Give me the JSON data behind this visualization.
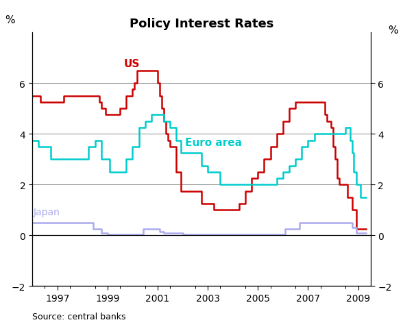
{
  "title": "Policy Interest Rates",
  "ylabel_left": "%",
  "ylabel_right": "%",
  "source": "Source: central banks",
  "ylim": [
    -2,
    8
  ],
  "yticks": [
    -2,
    0,
    2,
    4,
    6
  ],
  "xlim": [
    1996.0,
    2009.5
  ],
  "xticks_major": [
    1997,
    1999,
    2001,
    2003,
    2005,
    2007,
    2009
  ],
  "background_color": "#ffffff",
  "us_color": "#cc0000",
  "euro_color": "#00cccc",
  "japan_color": "#aaaaee",
  "us_label": "US",
  "euro_label": "Euro area",
  "japan_label": "Japan",
  "us_data": [
    [
      1996.0,
      5.5
    ],
    [
      1996.17,
      5.5
    ],
    [
      1996.33,
      5.25
    ],
    [
      1996.5,
      5.25
    ],
    [
      1996.75,
      5.25
    ],
    [
      1997.0,
      5.25
    ],
    [
      1997.25,
      5.5
    ],
    [
      1997.5,
      5.5
    ],
    [
      1997.75,
      5.5
    ],
    [
      1998.0,
      5.5
    ],
    [
      1998.25,
      5.5
    ],
    [
      1998.5,
      5.5
    ],
    [
      1998.67,
      5.25
    ],
    [
      1998.75,
      5.0
    ],
    [
      1998.92,
      4.75
    ],
    [
      1999.0,
      4.75
    ],
    [
      1999.25,
      4.75
    ],
    [
      1999.5,
      5.0
    ],
    [
      1999.75,
      5.5
    ],
    [
      2000.0,
      5.75
    ],
    [
      2000.08,
      6.0
    ],
    [
      2000.17,
      6.5
    ],
    [
      2000.5,
      6.5
    ],
    [
      2000.75,
      6.5
    ],
    [
      2001.0,
      6.0
    ],
    [
      2001.08,
      5.5
    ],
    [
      2001.17,
      5.0
    ],
    [
      2001.25,
      4.5
    ],
    [
      2001.33,
      4.0
    ],
    [
      2001.42,
      3.75
    ],
    [
      2001.5,
      3.5
    ],
    [
      2001.75,
      2.5
    ],
    [
      2001.92,
      1.75
    ],
    [
      2002.0,
      1.75
    ],
    [
      2002.25,
      1.75
    ],
    [
      2002.5,
      1.75
    ],
    [
      2002.75,
      1.25
    ],
    [
      2003.0,
      1.25
    ],
    [
      2003.25,
      1.0
    ],
    [
      2003.5,
      1.0
    ],
    [
      2003.75,
      1.0
    ],
    [
      2004.0,
      1.0
    ],
    [
      2004.25,
      1.25
    ],
    [
      2004.5,
      1.75
    ],
    [
      2004.75,
      2.25
    ],
    [
      2005.0,
      2.5
    ],
    [
      2005.25,
      3.0
    ],
    [
      2005.5,
      3.5
    ],
    [
      2005.75,
      4.0
    ],
    [
      2006.0,
      4.5
    ],
    [
      2006.25,
      5.0
    ],
    [
      2006.5,
      5.25
    ],
    [
      2006.75,
      5.25
    ],
    [
      2007.0,
      5.25
    ],
    [
      2007.25,
      5.25
    ],
    [
      2007.5,
      5.25
    ],
    [
      2007.67,
      4.75
    ],
    [
      2007.75,
      4.5
    ],
    [
      2007.92,
      4.25
    ],
    [
      2008.0,
      3.5
    ],
    [
      2008.08,
      3.0
    ],
    [
      2008.17,
      2.25
    ],
    [
      2008.25,
      2.0
    ],
    [
      2008.5,
      2.0
    ],
    [
      2008.58,
      1.5
    ],
    [
      2008.75,
      1.0
    ],
    [
      2008.92,
      0.25
    ],
    [
      2009.0,
      0.25
    ],
    [
      2009.3,
      0.25
    ]
  ],
  "euro_data": [
    [
      1996.0,
      3.75
    ],
    [
      1996.25,
      3.5
    ],
    [
      1996.5,
      3.5
    ],
    [
      1996.75,
      3.0
    ],
    [
      1997.0,
      3.0
    ],
    [
      1997.25,
      3.0
    ],
    [
      1997.5,
      3.0
    ],
    [
      1997.75,
      3.0
    ],
    [
      1998.0,
      3.0
    ],
    [
      1998.25,
      3.5
    ],
    [
      1998.5,
      3.75
    ],
    [
      1998.75,
      3.0
    ],
    [
      1999.0,
      3.0
    ],
    [
      1999.08,
      2.5
    ],
    [
      1999.25,
      2.5
    ],
    [
      1999.5,
      2.5
    ],
    [
      1999.75,
      3.0
    ],
    [
      2000.0,
      3.5
    ],
    [
      2000.25,
      4.25
    ],
    [
      2000.5,
      4.5
    ],
    [
      2000.75,
      4.75
    ],
    [
      2001.0,
      4.75
    ],
    [
      2001.25,
      4.5
    ],
    [
      2001.5,
      4.25
    ],
    [
      2001.75,
      3.75
    ],
    [
      2001.92,
      3.25
    ],
    [
      2002.0,
      3.25
    ],
    [
      2002.25,
      3.25
    ],
    [
      2002.5,
      3.25
    ],
    [
      2002.75,
      2.75
    ],
    [
      2003.0,
      2.5
    ],
    [
      2003.25,
      2.5
    ],
    [
      2003.5,
      2.0
    ],
    [
      2003.75,
      2.0
    ],
    [
      2004.0,
      2.0
    ],
    [
      2004.25,
      2.0
    ],
    [
      2004.5,
      2.0
    ],
    [
      2004.75,
      2.0
    ],
    [
      2005.0,
      2.0
    ],
    [
      2005.25,
      2.0
    ],
    [
      2005.5,
      2.0
    ],
    [
      2005.75,
      2.25
    ],
    [
      2006.0,
      2.5
    ],
    [
      2006.25,
      2.75
    ],
    [
      2006.5,
      3.0
    ],
    [
      2006.75,
      3.5
    ],
    [
      2007.0,
      3.75
    ],
    [
      2007.25,
      4.0
    ],
    [
      2007.5,
      4.0
    ],
    [
      2007.75,
      4.0
    ],
    [
      2008.0,
      4.0
    ],
    [
      2008.25,
      4.0
    ],
    [
      2008.5,
      4.25
    ],
    [
      2008.67,
      3.75
    ],
    [
      2008.75,
      3.25
    ],
    [
      2008.83,
      2.5
    ],
    [
      2008.92,
      2.0
    ],
    [
      2009.0,
      2.0
    ],
    [
      2009.08,
      1.5
    ],
    [
      2009.3,
      1.5
    ]
  ],
  "japan_data": [
    [
      1996.0,
      0.5
    ],
    [
      1996.25,
      0.5
    ],
    [
      1996.5,
      0.5
    ],
    [
      1996.75,
      0.5
    ],
    [
      1997.0,
      0.5
    ],
    [
      1997.25,
      0.5
    ],
    [
      1997.5,
      0.5
    ],
    [
      1997.75,
      0.5
    ],
    [
      1998.0,
      0.5
    ],
    [
      1998.25,
      0.5
    ],
    [
      1998.42,
      0.25
    ],
    [
      1998.75,
      0.1
    ],
    [
      1999.0,
      0.05
    ],
    [
      1999.25,
      0.05
    ],
    [
      1999.5,
      0.05
    ],
    [
      1999.75,
      0.05
    ],
    [
      2000.0,
      0.05
    ],
    [
      2000.42,
      0.25
    ],
    [
      2000.75,
      0.25
    ],
    [
      2001.0,
      0.25
    ],
    [
      2001.08,
      0.15
    ],
    [
      2001.25,
      0.1
    ],
    [
      2001.5,
      0.1
    ],
    [
      2001.75,
      0.1
    ],
    [
      2002.0,
      0.05
    ],
    [
      2002.25,
      0.05
    ],
    [
      2002.5,
      0.05
    ],
    [
      2002.75,
      0.05
    ],
    [
      2003.0,
      0.05
    ],
    [
      2003.25,
      0.05
    ],
    [
      2003.5,
      0.05
    ],
    [
      2003.75,
      0.05
    ],
    [
      2004.0,
      0.05
    ],
    [
      2004.25,
      0.05
    ],
    [
      2004.5,
      0.05
    ],
    [
      2004.75,
      0.05
    ],
    [
      2005.0,
      0.05
    ],
    [
      2005.25,
      0.05
    ],
    [
      2005.5,
      0.05
    ],
    [
      2005.75,
      0.05
    ],
    [
      2006.0,
      0.05
    ],
    [
      2006.08,
      0.25
    ],
    [
      2006.5,
      0.25
    ],
    [
      2006.67,
      0.5
    ],
    [
      2007.0,
      0.5
    ],
    [
      2007.25,
      0.5
    ],
    [
      2007.5,
      0.5
    ],
    [
      2007.75,
      0.5
    ],
    [
      2008.0,
      0.5
    ],
    [
      2008.25,
      0.5
    ],
    [
      2008.5,
      0.5
    ],
    [
      2008.75,
      0.3
    ],
    [
      2008.92,
      0.1
    ],
    [
      2009.0,
      0.1
    ],
    [
      2009.3,
      0.1
    ]
  ]
}
